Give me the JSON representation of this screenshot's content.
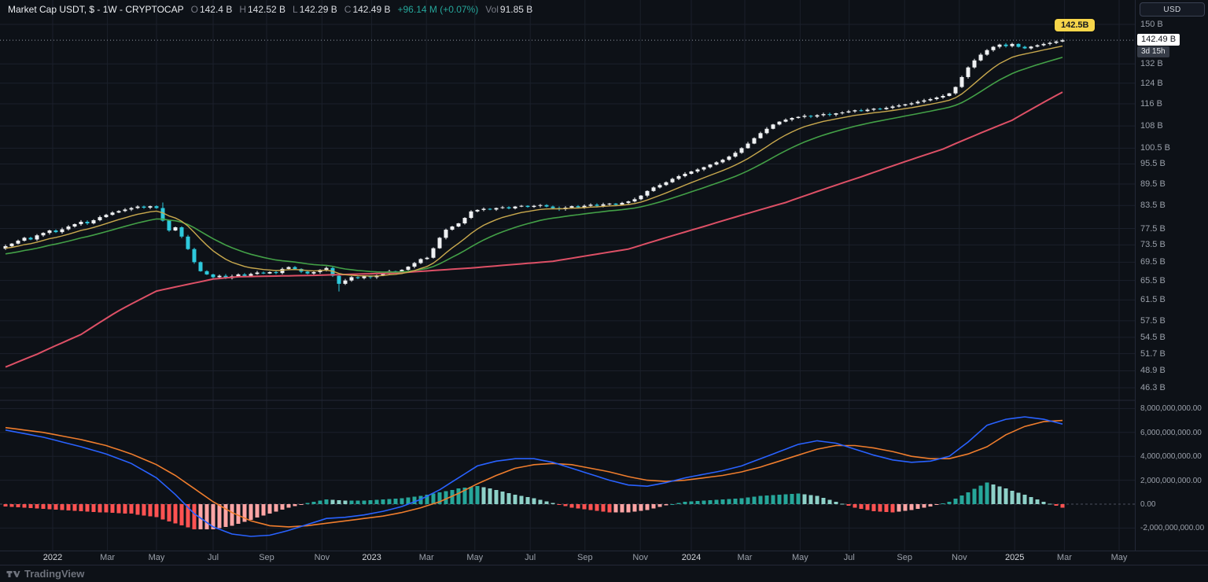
{
  "header": {
    "symbol": "Market Cap USDT, $ - 1W - CRYPTOCAP",
    "ohlc": {
      "o_label": "O",
      "o": "142.4 B",
      "h_label": "H",
      "h": "142.52 B",
      "l_label": "L",
      "l": "142.29 B",
      "c_label": "C",
      "c": "142.49 B",
      "change": "+96.14 M (+0.07%)"
    },
    "vol_label": "Vol",
    "vol": "91.85 B"
  },
  "top_right": {
    "currency_button": "USD"
  },
  "price_axis": {
    "current": {
      "label": "142.49 B",
      "value": 142.49,
      "countdown": "3d 15h"
    },
    "alert_badge": {
      "label": "142.5B",
      "value": 142.5
    }
  },
  "footer": {
    "brand": "TradingView"
  },
  "colors": {
    "background": "#0d1117",
    "grid": "#1b202b",
    "separator": "#232837",
    "up": "#eff1f3",
    "down": "#2ec9dc",
    "ma_fast": "#c9a94e",
    "ma_mid": "#43a047",
    "ma_slow": "#dd5066",
    "macd_line": "#2962ff",
    "macd_signal": "#ef7d2d",
    "hist_pos": "#26a69a",
    "hist_pos_weak": "#8ed1c8",
    "hist_neg": "#ff5252",
    "hist_neg_weak": "#ffa5a5",
    "change_positive": "#26a69a",
    "alert_badge_bg": "#f6d54a",
    "axis_text": "#9aa0aa"
  },
  "chart_data": {
    "type": "candlestick",
    "title": "Market Cap USDT, $ - 1W - CRYPTOCAP",
    "interval": "1W",
    "scale": "log",
    "units": "billions_usd",
    "ylim": [
      45,
      152
    ],
    "closes": [
      73.2,
      73.8,
      74.5,
      75.2,
      74.8,
      75.8,
      76.4,
      77.0,
      76.6,
      77.3,
      78.0,
      78.6,
      79.2,
      78.8,
      79.6,
      80.4,
      81.0,
      81.6,
      82.0,
      82.4,
      82.8,
      83.2,
      82.9,
      83.3,
      82.8,
      79.5,
      77.0,
      77.8,
      75.5,
      72.5,
      69.5,
      67.5,
      66.8,
      66.2,
      66.5,
      66.0,
      66.4,
      66.8,
      66.5,
      66.9,
      67.2,
      67.0,
      67.3,
      67.1,
      68.0,
      68.4,
      68.0,
      67.4,
      67.0,
      67.3,
      67.8,
      68.2,
      66.5,
      64.8,
      65.5,
      66.2,
      66.0,
      66.4,
      66.2,
      66.6,
      67.0,
      67.5,
      67.2,
      67.8,
      68.5,
      69.3,
      70.2,
      70.5,
      72.7,
      75.2,
      77.2,
      78.0,
      78.8,
      80.2,
      81.9,
      82.3,
      82.6,
      82.4,
      82.8,
      83.0,
      82.7,
      83.2,
      83.4,
      83.1,
      83.4,
      83.6,
      83.2,
      82.8,
      82.5,
      82.9,
      83.3,
      83.0,
      83.4,
      83.7,
      83.4,
      83.8,
      84.0,
      83.7,
      84.2,
      84.6,
      85.2,
      86.2,
      87.5,
      88.5,
      89.2,
      90.0,
      91.0,
      91.8,
      92.5,
      93.2,
      93.8,
      94.5,
      95.3,
      96.0,
      96.8,
      97.8,
      99.0,
      100.5,
      102.0,
      103.8,
      105.5,
      107.0,
      108.5,
      109.5,
      110.2,
      110.8,
      111.2,
      111.6,
      111.3,
      111.8,
      112.2,
      112.0,
      112.5,
      112.8,
      113.2,
      113.6,
      113.3,
      113.8,
      114.2,
      114.0,
      114.5,
      115.0,
      115.4,
      115.8,
      116.2,
      116.8,
      117.3,
      117.8,
      118.4,
      119.0,
      120.0,
      122.5,
      126.5,
      130.5,
      133.5,
      136.0,
      138.0,
      139.5,
      140.5,
      139.8,
      140.8,
      139.5,
      138.8,
      139.6,
      140.2,
      140.8,
      141.3,
      141.9,
      142.49
    ],
    "wick_exceptions": {
      "25": {
        "high": 84.3
      },
      "53": {
        "low": 63.2
      }
    },
    "ma_fast_period": 10,
    "ma_fast_seed": 72.6,
    "ma_mid_period": 21,
    "ma_mid_seed": 71.2,
    "ma_slow_keypoints": [
      [
        0,
        49.5
      ],
      [
        5,
        51.6
      ],
      [
        12,
        55.0
      ],
      [
        18,
        59.4
      ],
      [
        24,
        63.3
      ],
      [
        33,
        65.8
      ],
      [
        37,
        66.3
      ],
      [
        49,
        66.6
      ],
      [
        62,
        67.1
      ],
      [
        74,
        68.2
      ],
      [
        87,
        69.7
      ],
      [
        99,
        72.5
      ],
      [
        111,
        78.0
      ],
      [
        124,
        84.3
      ],
      [
        136,
        91.6
      ],
      [
        149,
        100.2
      ],
      [
        160,
        110.0
      ],
      [
        168,
        120.5
      ]
    ],
    "price_ticks": [
      {
        "label": "150 B",
        "value": 150
      },
      {
        "label": "132 B",
        "value": 132
      },
      {
        "label": "124 B",
        "value": 124
      },
      {
        "label": "116 B",
        "value": 116
      },
      {
        "label": "108 B",
        "value": 108
      },
      {
        "label": "100.5 B",
        "value": 100.5
      },
      {
        "label": "95.5 B",
        "value": 95.5
      },
      {
        "label": "89.5 B",
        "value": 89.5
      },
      {
        "label": "83.5 B",
        "value": 83.5
      },
      {
        "label": "77.5 B",
        "value": 77.5
      },
      {
        "label": "73.5 B",
        "value": 73.5
      },
      {
        "label": "69.5 B",
        "value": 69.5
      },
      {
        "label": "65.5 B",
        "value": 65.5
      },
      {
        "label": "61.5 B",
        "value": 61.5
      },
      {
        "label": "57.5 B",
        "value": 57.5
      },
      {
        "label": "54.5 B",
        "value": 54.5
      },
      {
        "label": "51.7 B",
        "value": 51.7
      },
      {
        "label": "48.9 B",
        "value": 48.9
      },
      {
        "label": "46.3 B",
        "value": 46.3
      }
    ],
    "time_ticks": [
      {
        "label": "2022",
        "week": 7.5,
        "major": true
      },
      {
        "label": "Mar",
        "week": 16.2
      },
      {
        "label": "May",
        "week": 24
      },
      {
        "label": "Jul",
        "week": 33
      },
      {
        "label": "Sep",
        "week": 41.5
      },
      {
        "label": "Nov",
        "week": 50.3
      },
      {
        "label": "2023",
        "week": 58.2,
        "major": true
      },
      {
        "label": "Mar",
        "week": 66.9
      },
      {
        "label": "May",
        "week": 74.6
      },
      {
        "label": "Jul",
        "week": 83.4
      },
      {
        "label": "Sep",
        "week": 92.1
      },
      {
        "label": "Nov",
        "week": 100.9
      },
      {
        "label": "2024",
        "week": 109,
        "major": true
      },
      {
        "label": "Mar",
        "week": 117.5
      },
      {
        "label": "May",
        "week": 126.3
      },
      {
        "label": "Jul",
        "week": 134.1
      },
      {
        "label": "Sep",
        "week": 142.9
      },
      {
        "label": "Nov",
        "week": 151.6
      },
      {
        "label": "2025",
        "week": 160.4,
        "major": true
      },
      {
        "label": "Mar",
        "week": 168.3
      },
      {
        "label": "May",
        "week": 177
      }
    ],
    "indicator": {
      "type": "macd",
      "ylim": [
        -3.2,
        8.6
      ],
      "line_keypoints": [
        [
          0,
          6.2
        ],
        [
          6,
          5.6
        ],
        [
          12,
          4.8
        ],
        [
          16,
          4.2
        ],
        [
          20,
          3.4
        ],
        [
          24,
          2.2
        ],
        [
          27,
          0.8
        ],
        [
          30,
          -0.8
        ],
        [
          33,
          -1.9
        ],
        [
          36,
          -2.5
        ],
        [
          39,
          -2.7
        ],
        [
          42,
          -2.6
        ],
        [
          45,
          -2.2
        ],
        [
          48,
          -1.7
        ],
        [
          51,
          -1.2
        ],
        [
          54,
          -1.1
        ],
        [
          57,
          -0.9
        ],
        [
          60,
          -0.6
        ],
        [
          63,
          -0.2
        ],
        [
          66,
          0.4
        ],
        [
          69,
          1.2
        ],
        [
          72,
          2.2
        ],
        [
          75,
          3.2
        ],
        [
          78,
          3.6
        ],
        [
          81,
          3.8
        ],
        [
          84,
          3.8
        ],
        [
          87,
          3.5
        ],
        [
          90,
          3.0
        ],
        [
          93,
          2.5
        ],
        [
          96,
          2.0
        ],
        [
          99,
          1.6
        ],
        [
          102,
          1.5
        ],
        [
          105,
          1.8
        ],
        [
          108,
          2.2
        ],
        [
          111,
          2.5
        ],
        [
          114,
          2.8
        ],
        [
          117,
          3.2
        ],
        [
          120,
          3.8
        ],
        [
          123,
          4.4
        ],
        [
          126,
          5.0
        ],
        [
          129,
          5.3
        ],
        [
          132,
          5.1
        ],
        [
          135,
          4.6
        ],
        [
          138,
          4.1
        ],
        [
          141,
          3.7
        ],
        [
          144,
          3.5
        ],
        [
          147,
          3.6
        ],
        [
          150,
          4.0
        ],
        [
          153,
          5.2
        ],
        [
          156,
          6.6
        ],
        [
          159,
          7.1
        ],
        [
          162,
          7.3
        ],
        [
          165,
          7.1
        ],
        [
          168,
          6.7
        ]
      ],
      "signal_keypoints": [
        [
          0,
          6.4
        ],
        [
          6,
          6.0
        ],
        [
          12,
          5.4
        ],
        [
          16,
          4.9
        ],
        [
          20,
          4.2
        ],
        [
          24,
          3.3
        ],
        [
          27,
          2.4
        ],
        [
          30,
          1.3
        ],
        [
          33,
          0.2
        ],
        [
          36,
          -0.7
        ],
        [
          39,
          -1.4
        ],
        [
          42,
          -1.8
        ],
        [
          45,
          -1.9
        ],
        [
          48,
          -1.8
        ],
        [
          51,
          -1.6
        ],
        [
          54,
          -1.4
        ],
        [
          57,
          -1.2
        ],
        [
          60,
          -1.0
        ],
        [
          63,
          -0.7
        ],
        [
          66,
          -0.3
        ],
        [
          69,
          0.2
        ],
        [
          72,
          0.9
        ],
        [
          75,
          1.7
        ],
        [
          78,
          2.4
        ],
        [
          81,
          3.0
        ],
        [
          84,
          3.3
        ],
        [
          87,
          3.4
        ],
        [
          90,
          3.3
        ],
        [
          93,
          3.0
        ],
        [
          96,
          2.7
        ],
        [
          99,
          2.3
        ],
        [
          102,
          2.0
        ],
        [
          105,
          1.9
        ],
        [
          108,
          2.0
        ],
        [
          111,
          2.2
        ],
        [
          114,
          2.4
        ],
        [
          117,
          2.7
        ],
        [
          120,
          3.1
        ],
        [
          123,
          3.6
        ],
        [
          126,
          4.1
        ],
        [
          129,
          4.6
        ],
        [
          132,
          4.9
        ],
        [
          135,
          4.9
        ],
        [
          138,
          4.7
        ],
        [
          141,
          4.4
        ],
        [
          144,
          4.0
        ],
        [
          147,
          3.8
        ],
        [
          150,
          3.8
        ],
        [
          153,
          4.2
        ],
        [
          156,
          4.8
        ],
        [
          159,
          5.8
        ],
        [
          162,
          6.5
        ],
        [
          165,
          6.9
        ],
        [
          168,
          7.0
        ]
      ],
      "ticks": [
        {
          "label": "8,000,000,000.00",
          "value": 8
        },
        {
          "label": "6,000,000,000.00",
          "value": 6
        },
        {
          "label": "4,000,000,000.00",
          "value": 4
        },
        {
          "label": "2,000,000,000.00",
          "value": 2
        },
        {
          "label": "0.00",
          "value": 0
        },
        {
          "label": "-2,000,000,000.00",
          "value": -2
        }
      ]
    }
  }
}
